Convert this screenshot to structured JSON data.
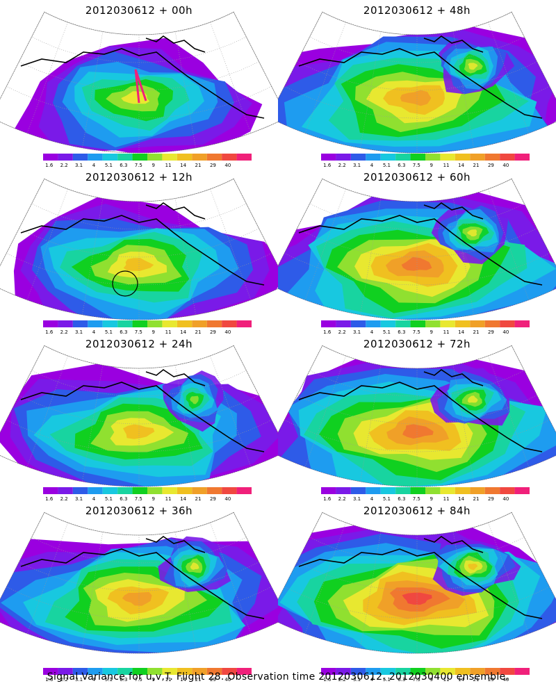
{
  "panels": [
    {
      "title": "2012030612 + 00h",
      "col": 0,
      "row": 0,
      "intensity": 0.55,
      "spread": 0.55,
      "extent": 0.6,
      "mark": "arrow"
    },
    {
      "title": "2012030612 + 12h",
      "col": 0,
      "row": 1,
      "intensity": 0.65,
      "spread": 0.65,
      "extent": 0.75,
      "mark": "circle"
    },
    {
      "title": "2012030612 + 24h",
      "col": 0,
      "row": 2,
      "intensity": 0.72,
      "spread": 0.72,
      "extent": 0.82,
      "mark": ""
    },
    {
      "title": "2012030612 + 36h",
      "col": 0,
      "row": 3,
      "intensity": 0.78,
      "spread": 0.8,
      "extent": 0.88,
      "mark": ""
    },
    {
      "title": "2012030612 + 48h",
      "col": 1,
      "row": 0,
      "intensity": 0.8,
      "spread": 0.85,
      "extent": 0.95,
      "mark": ""
    },
    {
      "title": "2012030612 + 60h",
      "col": 1,
      "row": 1,
      "intensity": 0.85,
      "spread": 0.9,
      "extent": 0.97,
      "mark": ""
    },
    {
      "title": "2012030612 + 72h",
      "col": 1,
      "row": 2,
      "intensity": 0.92,
      "spread": 0.95,
      "extent": 1.0,
      "mark": ""
    },
    {
      "title": "2012030612 + 84h",
      "col": 1,
      "row": 3,
      "intensity": 0.97,
      "spread": 1.0,
      "extent": 1.0,
      "mark": ""
    }
  ],
  "colorbar": {
    "ticks": [
      "1.6",
      "2.2",
      "3.1",
      "4",
      "5.1",
      "6.3",
      "7.5",
      "9",
      "11",
      "14",
      "21",
      "29",
      "40"
    ],
    "colors": [
      "#9a00e0",
      "#7a1ae8",
      "#2e5be8",
      "#1e9cf0",
      "#18c8e0",
      "#18d4a0",
      "#10d020",
      "#90e030",
      "#e8e830",
      "#f0c020",
      "#f0a028",
      "#f07830",
      "#f04840",
      "#f0207a"
    ]
  },
  "caption": "Signal Variance for u,v,T. Flight 28. Observation time 2012030612. 2012030400 ensemble."
}
